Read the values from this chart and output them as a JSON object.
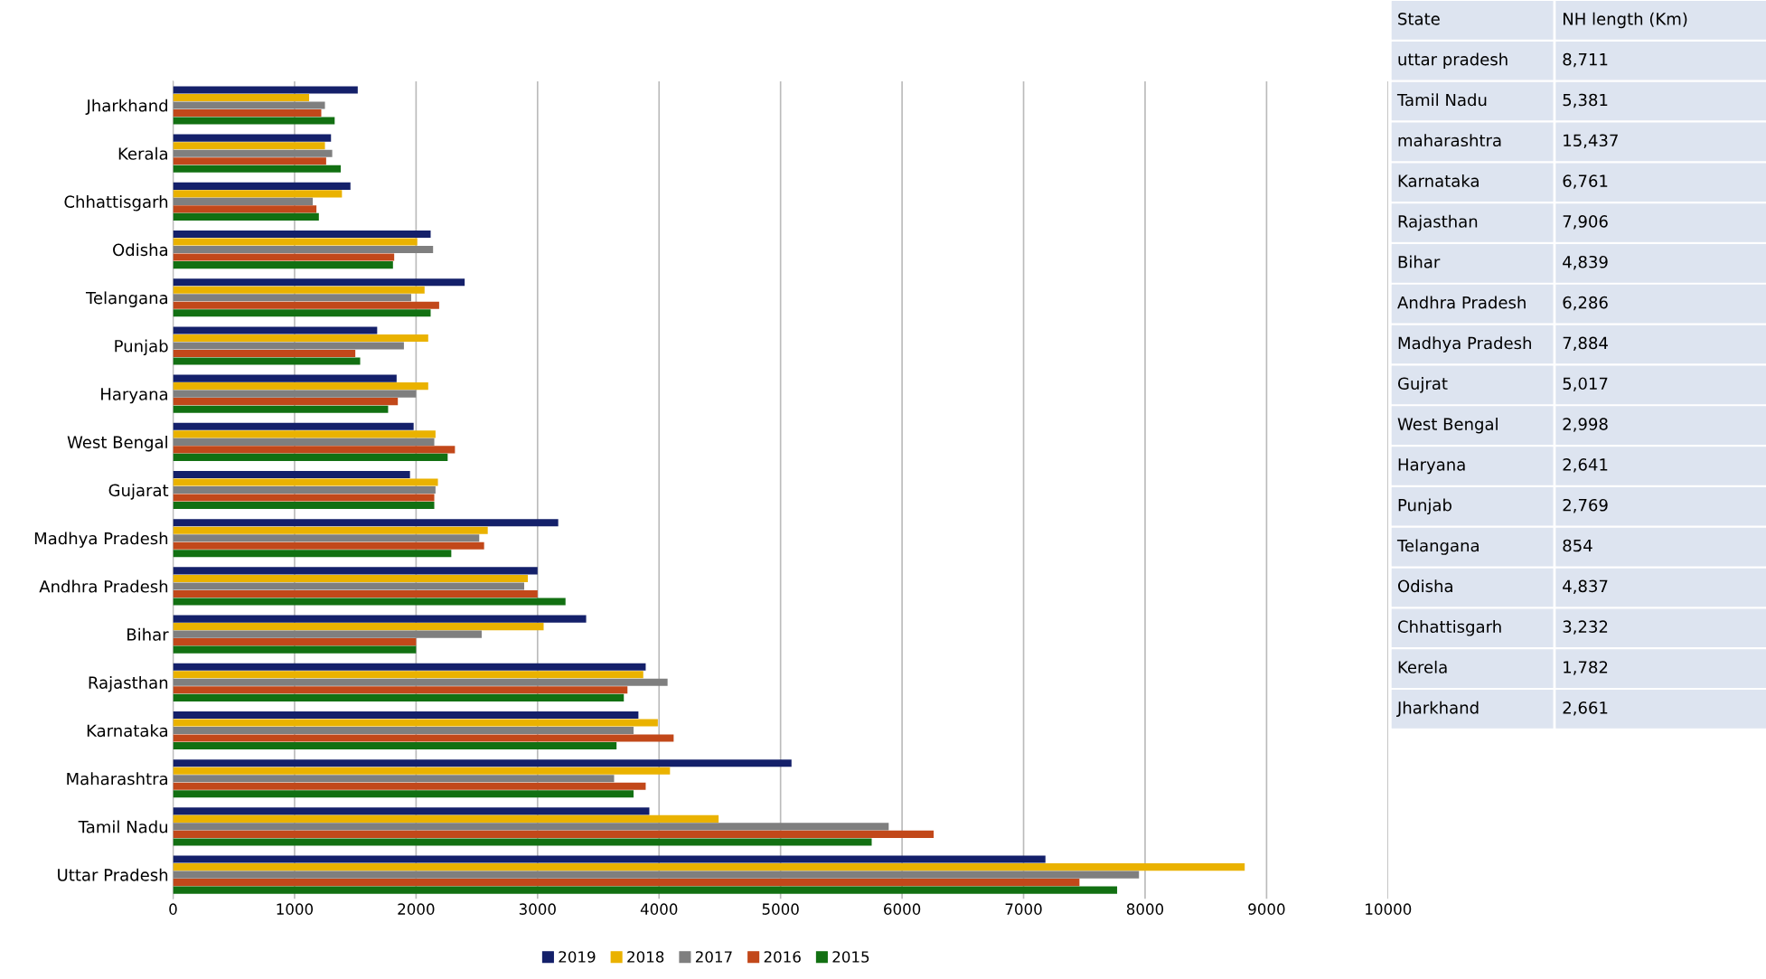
{
  "chart_data": [
    {
      "type": "bar",
      "orientation": "horizontal",
      "categories": [
        "Jharkhand",
        "Kerala",
        "Chhattisgarh",
        "Odisha",
        "Telangana",
        "Punjab",
        "Haryana",
        "West Bengal",
        "Gujarat",
        "Madhya Pradesh",
        "Andhra Pradesh",
        "Bihar",
        "Rajasthan",
        "Karnataka",
        "Maharashtra",
        "Tamil Nadu",
        "Uttar Pradesh"
      ],
      "series": [
        {
          "name": "2019",
          "color": "#14206a",
          "values": [
            1520,
            1300,
            1460,
            2120,
            2400,
            1680,
            1840,
            1980,
            1950,
            3170,
            3000,
            3400,
            3890,
            3830,
            5090,
            3920,
            7180
          ]
        },
        {
          "name": "2018",
          "color": "#eab200",
          "values": [
            1120,
            1250,
            1390,
            2010,
            2070,
            2100,
            2100,
            2160,
            2180,
            2590,
            2920,
            3050,
            3870,
            3990,
            4090,
            4490,
            8820
          ]
        },
        {
          "name": "2017",
          "color": "#7f7f7f",
          "values": [
            1250,
            1310,
            1150,
            2140,
            1960,
            1900,
            2000,
            2150,
            2160,
            2520,
            2890,
            2540,
            4070,
            3790,
            3630,
            5890,
            7950
          ]
        },
        {
          "name": "2016",
          "color": "#c2481a",
          "values": [
            1220,
            1260,
            1180,
            1820,
            2190,
            1500,
            1850,
            2320,
            2150,
            2560,
            3000,
            2000,
            3740,
            4120,
            3890,
            6260,
            7460
          ]
        },
        {
          "name": "2015",
          "color": "#127012",
          "values": [
            1330,
            1380,
            1200,
            1810,
            2120,
            1540,
            1770,
            2260,
            2150,
            2290,
            3230,
            2000,
            3710,
            3650,
            3790,
            5750,
            7770
          ]
        }
      ],
      "xlim": [
        0,
        10000
      ],
      "xticks": [
        0,
        1000,
        2000,
        3000,
        4000,
        5000,
        6000,
        7000,
        8000,
        9000,
        10000
      ],
      "grid": "x",
      "legend": "bottom"
    },
    {
      "type": "other",
      "annotations": [
        "State",
        "NH length (Km)",
        "uttar pradesh",
        "8,711",
        "Tamil Nadu",
        "5,381",
        "maharashtra",
        "15,437",
        "Karnataka",
        "6,761",
        "Rajasthan",
        "7,906",
        "Bihar",
        "4,839",
        "Andhra Pradesh",
        "6,286",
        "Madhya Pradesh",
        "7,884",
        "Gujrat",
        "5,017",
        "West Bengal",
        "2,998",
        "Haryana",
        "2,641",
        "Punjab",
        "2,769",
        "Telangana",
        "854",
        "Odisha",
        "4,837",
        "Chhattisgarh",
        "3,232",
        "Kerela",
        "1,782",
        "Jharkhand",
        "2,661"
      ]
    }
  ]
}
